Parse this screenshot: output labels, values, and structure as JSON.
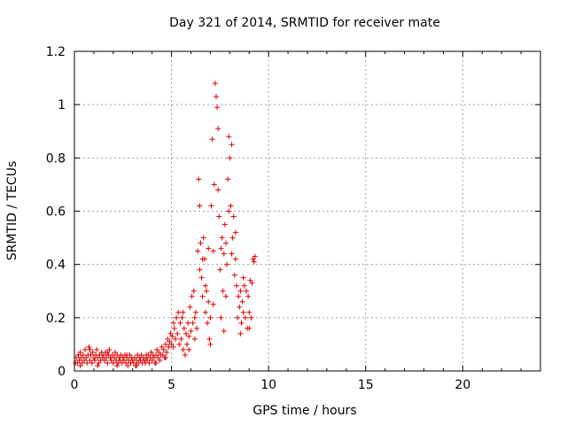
{
  "chart_data": {
    "type": "scatter",
    "title": "Day 321 of 2014, SRMTID for receiver mate",
    "xlabel": "GPS time / hours",
    "ylabel": "SRMTID / TECUs",
    "xlim": [
      0,
      24
    ],
    "ylim": [
      0,
      1.2
    ],
    "xticks": [
      0,
      5,
      10,
      15,
      20
    ],
    "yticks": [
      0,
      0.2,
      0.4,
      0.6,
      0.8,
      1,
      1.2
    ],
    "xtick_labels": [
      "0",
      "5",
      "10",
      "15",
      "20"
    ],
    "ytick_labels": [
      "0",
      "0.2",
      "0.4",
      "0.6",
      "0.8",
      "1",
      "1.2"
    ],
    "grid": true,
    "marker": "+",
    "color": "#e00000",
    "series": [
      {
        "name": "SRMTID",
        "points": [
          [
            0.05,
            0.03
          ],
          [
            0.1,
            0.05
          ],
          [
            0.15,
            0.03
          ],
          [
            0.2,
            0.06
          ],
          [
            0.25,
            0.04
          ],
          [
            0.3,
            0.07
          ],
          [
            0.35,
            0.05
          ],
          [
            0.4,
            0.03
          ],
          [
            0.45,
            0.06
          ],
          [
            0.5,
            0.04
          ],
          [
            0.55,
            0.08
          ],
          [
            0.6,
            0.05
          ],
          [
            0.65,
            0.03
          ],
          [
            0.7,
            0.06
          ],
          [
            0.75,
            0.09
          ],
          [
            0.8,
            0.04
          ],
          [
            0.85,
            0.06
          ],
          [
            0.9,
            0.03
          ],
          [
            0.95,
            0.07
          ],
          [
            1.0,
            0.05
          ],
          [
            1.05,
            0.04
          ],
          [
            1.1,
            0.06
          ],
          [
            1.15,
            0.08
          ],
          [
            1.2,
            0.05
          ],
          [
            1.25,
            0.03
          ],
          [
            1.3,
            0.06
          ],
          [
            1.35,
            0.04
          ],
          [
            1.4,
            0.07
          ],
          [
            1.45,
            0.05
          ],
          [
            1.5,
            0.06
          ],
          [
            1.55,
            0.04
          ],
          [
            1.6,
            0.07
          ],
          [
            1.65,
            0.05
          ],
          [
            1.7,
            0.03
          ],
          [
            1.75,
            0.06
          ],
          [
            1.8,
            0.08
          ],
          [
            1.85,
            0.05
          ],
          [
            1.9,
            0.04
          ],
          [
            1.95,
            0.06
          ],
          [
            2.0,
            0.03
          ],
          [
            2.05,
            0.05
          ],
          [
            2.1,
            0.07
          ],
          [
            2.15,
            0.04
          ],
          [
            2.2,
            0.06
          ],
          [
            2.25,
            0.03
          ],
          [
            2.3,
            0.05
          ],
          [
            2.35,
            0.04
          ],
          [
            2.4,
            0.06
          ],
          [
            2.45,
            0.03
          ],
          [
            2.5,
            0.05
          ],
          [
            2.55,
            0.04
          ],
          [
            2.6,
            0.06
          ],
          [
            2.65,
            0.03
          ],
          [
            2.7,
            0.05
          ],
          [
            2.75,
            0.02
          ],
          [
            2.8,
            0.04
          ],
          [
            2.85,
            0.06
          ],
          [
            2.9,
            0.03
          ],
          [
            2.95,
            0.05
          ],
          [
            3.0,
            0.04
          ],
          [
            3.05,
            0.03
          ],
          [
            3.1,
            0.05
          ],
          [
            3.15,
            0.02
          ],
          [
            3.2,
            0.04
          ],
          [
            3.25,
            0.06
          ],
          [
            3.3,
            0.03
          ],
          [
            3.35,
            0.05
          ],
          [
            3.4,
            0.04
          ],
          [
            3.45,
            0.06
          ],
          [
            3.5,
            0.03
          ],
          [
            3.55,
            0.05
          ],
          [
            3.6,
            0.04
          ],
          [
            3.65,
            0.03
          ],
          [
            3.7,
            0.05
          ],
          [
            3.75,
            0.04
          ],
          [
            3.8,
            0.06
          ],
          [
            3.85,
            0.03
          ],
          [
            3.9,
            0.05
          ],
          [
            3.95,
            0.07
          ],
          [
            4.0,
            0.04
          ],
          [
            4.05,
            0.06
          ],
          [
            4.1,
            0.05
          ],
          [
            4.15,
            0.03
          ],
          [
            4.2,
            0.06
          ],
          [
            4.25,
            0.08
          ],
          [
            4.3,
            0.05
          ],
          [
            4.35,
            0.07
          ],
          [
            4.4,
            0.04
          ],
          [
            4.45,
            0.06
          ],
          [
            4.5,
            0.09
          ],
          [
            4.55,
            0.06
          ],
          [
            4.6,
            0.08
          ],
          [
            4.65,
            0.05
          ],
          [
            4.7,
            0.1
          ],
          [
            4.75,
            0.07
          ],
          [
            4.8,
            0.12
          ],
          [
            4.85,
            0.09
          ],
          [
            4.9,
            0.11
          ],
          [
            4.95,
            0.14
          ],
          [
            5.0,
            0.1
          ],
          [
            5.05,
            0.13
          ],
          [
            5.1,
            0.09
          ],
          [
            5.15,
            0.16
          ],
          [
            5.2,
            0.12
          ],
          [
            5.25,
            0.2
          ],
          [
            5.3,
            0.14
          ],
          [
            5.35,
            0.22
          ],
          [
            5.4,
            0.1
          ],
          [
            5.45,
            0.18
          ],
          [
            5.5,
            0.12
          ],
          [
            5.55,
            0.2
          ],
          [
            5.6,
            0.08
          ],
          [
            5.65,
            0.16
          ],
          [
            5.7,
            0.06
          ],
          [
            5.75,
            0.14
          ],
          [
            5.8,
            0.1
          ],
          [
            5.85,
            0.18
          ],
          [
            5.9,
            0.13
          ],
          [
            5.95,
            0.24
          ],
          [
            6.0,
            0.15
          ],
          [
            6.05,
            0.28
          ],
          [
            6.1,
            0.18
          ],
          [
            6.15,
            0.3
          ],
          [
            6.2,
            0.12
          ],
          [
            6.25,
            0.22
          ],
          [
            6.3,
            0.16
          ],
          [
            6.35,
            0.45
          ],
          [
            6.4,
            0.72
          ],
          [
            6.45,
            0.62
          ],
          [
            6.5,
            0.48
          ],
          [
            6.55,
            0.35
          ],
          [
            6.6,
            0.28
          ],
          [
            6.65,
            0.5
          ],
          [
            6.7,
            0.42
          ],
          [
            6.75,
            0.22
          ],
          [
            6.8,
            0.3
          ],
          [
            6.85,
            0.18
          ],
          [
            6.9,
            0.26
          ],
          [
            6.95,
            0.12
          ],
          [
            7.0,
            0.2
          ],
          [
            7.05,
            0.62
          ],
          [
            7.1,
            0.87
          ],
          [
            7.15,
            0.45
          ],
          [
            7.2,
            0.7
          ],
          [
            7.25,
            1.08
          ],
          [
            7.3,
            1.03
          ],
          [
            7.35,
            0.99
          ],
          [
            7.4,
            0.91
          ],
          [
            7.45,
            0.58
          ],
          [
            7.5,
            0.38
          ],
          [
            7.55,
            0.46
          ],
          [
            7.6,
            0.5
          ],
          [
            7.65,
            0.3
          ],
          [
            7.7,
            0.44
          ],
          [
            7.75,
            0.55
          ],
          [
            7.8,
            0.28
          ],
          [
            7.85,
            0.4
          ],
          [
            7.9,
            0.72
          ],
          [
            7.95,
            0.88
          ],
          [
            8.0,
            0.8
          ],
          [
            8.05,
            0.62
          ],
          [
            8.1,
            0.85
          ],
          [
            8.15,
            0.5
          ],
          [
            8.2,
            0.58
          ],
          [
            8.25,
            0.36
          ],
          [
            8.3,
            0.42
          ],
          [
            8.35,
            0.32
          ],
          [
            8.4,
            0.2
          ],
          [
            8.45,
            0.28
          ],
          [
            8.5,
            0.24
          ],
          [
            8.55,
            0.3
          ],
          [
            8.6,
            0.18
          ],
          [
            8.65,
            0.26
          ],
          [
            8.7,
            0.22
          ],
          [
            8.75,
            0.32
          ],
          [
            8.8,
            0.2
          ],
          [
            8.85,
            0.3
          ],
          [
            8.9,
            0.16
          ],
          [
            8.95,
            0.28
          ],
          [
            9.0,
            0.22
          ],
          [
            9.05,
            0.34
          ],
          [
            9.1,
            0.2
          ],
          [
            9.15,
            0.33
          ],
          [
            9.2,
            0.42
          ],
          [
            9.25,
            0.41
          ],
          [
            9.3,
            0.43
          ],
          [
            0.3,
            0.02
          ],
          [
            0.8,
            0.08
          ],
          [
            1.2,
            0.02
          ],
          [
            1.7,
            0.07
          ],
          [
            2.2,
            0.02
          ],
          [
            2.7,
            0.06
          ],
          [
            3.2,
            0.02
          ],
          [
            3.7,
            0.06
          ],
          [
            4.2,
            0.03
          ],
          [
            4.7,
            0.05
          ],
          [
            5.1,
            0.18
          ],
          [
            5.6,
            0.22
          ],
          [
            5.9,
            0.08
          ],
          [
            6.2,
            0.2
          ],
          [
            6.45,
            0.38
          ],
          [
            6.6,
            0.42
          ],
          [
            6.75,
            0.32
          ],
          [
            6.9,
            0.46
          ],
          [
            7.0,
            0.1
          ],
          [
            7.15,
            0.25
          ],
          [
            7.4,
            0.68
          ],
          [
            7.55,
            0.2
          ],
          [
            7.7,
            0.15
          ],
          [
            7.8,
            0.48
          ],
          [
            7.95,
            0.6
          ],
          [
            8.1,
            0.44
          ],
          [
            8.3,
            0.52
          ],
          [
            8.55,
            0.14
          ],
          [
            8.7,
            0.35
          ],
          [
            9.0,
            0.16
          ]
        ]
      }
    ]
  }
}
